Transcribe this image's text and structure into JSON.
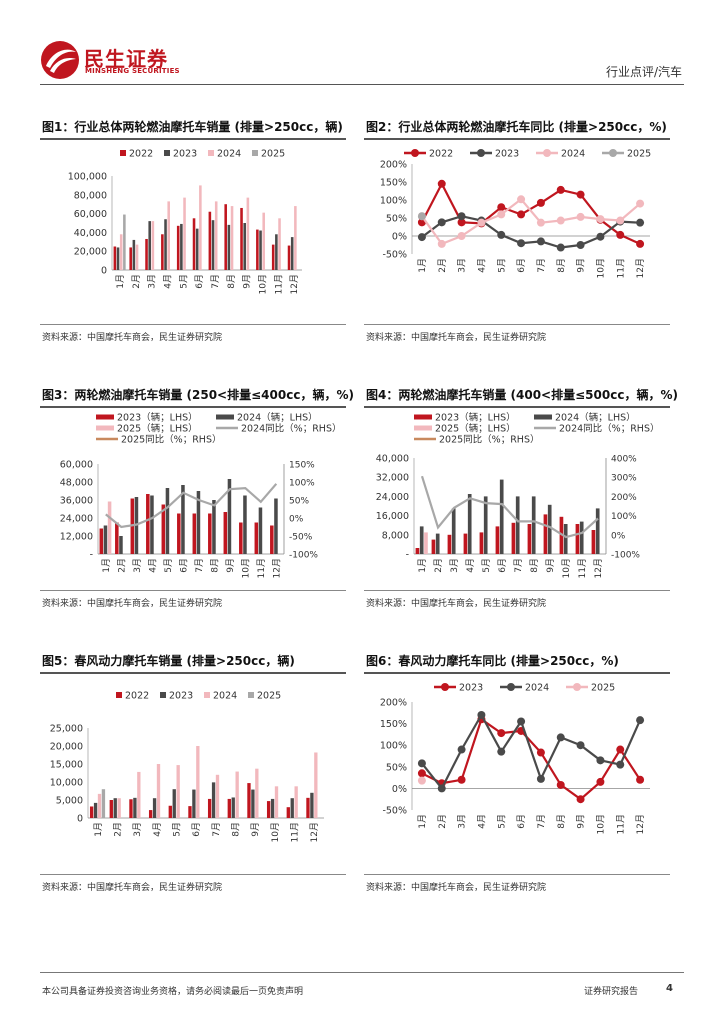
{
  "header": {
    "brand_cn": "民生证券",
    "brand_en": "MINSHENG SECURITIES",
    "category": "行业点评/汽车"
  },
  "colors": {
    "brand_red": "#c0161f",
    "s2022": "#c0161f",
    "s2023": "#4a4a4a",
    "s2024": "#f2b8bd",
    "s2025": "#a8a8a8",
    "rhs_2024": "#a8a8a8",
    "rhs_2025": "#c8895e"
  },
  "panels": [
    {
      "title": "图1：行业总体两轮燃油摩托车销量 (排量>250cc，辆)",
      "source": "资料来源：中国摩托车商会，民生证券研究院",
      "chart_data": {
        "type": "bar",
        "categories": [
          "1月",
          "2月",
          "3月",
          "4月",
          "5月",
          "6月",
          "7月",
          "8月",
          "9月",
          "10月",
          "11月",
          "12月"
        ],
        "ylim": [
          0,
          100000
        ],
        "yticks": [
          "0",
          "20,000",
          "40,000",
          "60,000",
          "80,000",
          "100,000"
        ],
        "legend": "top",
        "series": [
          {
            "name": "2022",
            "color": "#c0161f",
            "values": [
              25000,
              24000,
              33000,
              38000,
              47000,
              55000,
              62000,
              70000,
              66000,
              43000,
              27000,
              26000
            ]
          },
          {
            "name": "2023",
            "color": "#4a4a4a",
            "values": [
              24000,
              32000,
              52000,
              54000,
              49000,
              44000,
              53000,
              48000,
              50000,
              42000,
              38000,
              35000
            ]
          },
          {
            "name": "2024",
            "color": "#f2b8bd",
            "values": [
              38000,
              27000,
              52000,
              73000,
              77000,
              90000,
              73000,
              68000,
              77000,
              61000,
              55000,
              68000
            ]
          },
          {
            "name": "2025",
            "color": "#a8a8a8",
            "values": [
              59000,
              null,
              null,
              null,
              null,
              null,
              null,
              null,
              null,
              null,
              null,
              null
            ]
          }
        ]
      }
    },
    {
      "title": "图2：行业总体两轮燃油摩托车同比 (排量>250cc，%)",
      "source": "资料来源：中国摩托车商会，民生证券研究院",
      "chart_data": {
        "type": "line",
        "categories": [
          "1月",
          "2月",
          "3月",
          "4月",
          "5月",
          "6月",
          "7月",
          "8月",
          "9月",
          "10月",
          "11月",
          "12月"
        ],
        "ylim": [
          -50,
          200
        ],
        "yticks": [
          "-50%",
          "0%",
          "50%",
          "100%",
          "150%",
          "200%"
        ],
        "legend": "top",
        "series": [
          {
            "name": "2022",
            "color": "#c0161f",
            "values": [
              38,
              145,
              38,
              35,
              80,
              60,
              92,
              128,
              115,
              45,
              3,
              -22
            ]
          },
          {
            "name": "2023",
            "color": "#4a4a4a",
            "values": [
              -3,
              38,
              55,
              43,
              3,
              -20,
              -15,
              -32,
              -25,
              -2,
              40,
              37
            ]
          },
          {
            "name": "2024",
            "color": "#f2b8bd",
            "values": [
              55,
              -22,
              0,
              37,
              60,
              102,
              37,
              43,
              53,
              47,
              43,
              90
            ]
          },
          {
            "name": "2025",
            "color": "#a8a8a8",
            "values": [
              55,
              null,
              null,
              null,
              null,
              null,
              null,
              null,
              null,
              null,
              null,
              null
            ]
          }
        ]
      }
    },
    {
      "title": "图3：两轮燃油摩托车销量 (250<排量≤400cc，辆，%)",
      "source": "资料来源：中国摩托车商会，民生证券研究院",
      "chart_data": {
        "type": "bar",
        "categories": [
          "1月",
          "2月",
          "3月",
          "4月",
          "5月",
          "6月",
          "7月",
          "8月",
          "9月",
          "10月",
          "11月",
          "12月"
        ],
        "ylim": [
          0,
          60000
        ],
        "yticks": [
          "-",
          "12,000",
          "24,000",
          "36,000",
          "48,000",
          "60,000"
        ],
        "y2lim": [
          -100,
          150
        ],
        "y2ticks": [
          "-100%",
          "-50%",
          "0%",
          "50%",
          "100%",
          "150%"
        ],
        "legend": "top",
        "series": [
          {
            "name": "2023（辆；LHS）",
            "color": "#c0161f",
            "values": [
              17000,
              21000,
              37000,
              40000,
              33000,
              27000,
              27000,
              27000,
              28000,
              21000,
              21000,
              19000
            ]
          },
          {
            "name": "2024（辆；LHS）",
            "color": "#4a4a4a",
            "values": [
              19000,
              12000,
              38000,
              39000,
              44000,
              46000,
              42000,
              36000,
              50000,
              39000,
              31000,
              37000
            ]
          },
          {
            "name": "2025（辆；LHS）",
            "color": "#f2b8bd",
            "values": [
              35000,
              null,
              null,
              null,
              null,
              null,
              null,
              null,
              null,
              null,
              null,
              null
            ]
          },
          {
            "name": "2024同比（%；RHS）",
            "color": "#a8a8a8",
            "axis": "right",
            "values": [
              10,
              -25,
              -18,
              0,
              30,
              70,
              50,
              35,
              80,
              83,
              45,
              95
            ]
          },
          {
            "name": "2025同比（%；RHS）",
            "color": "#c8895e",
            "axis": "right",
            "values": [
              null,
              null,
              null,
              null,
              null,
              null,
              null,
              null,
              null,
              null,
              null,
              null
            ]
          }
        ]
      }
    },
    {
      "title": "图4：两轮燃油摩托车销量 (400<排量≤500cc，辆，%)",
      "source": "资料来源：中国摩托车商会，民生证券研究院",
      "chart_data": {
        "type": "bar",
        "categories": [
          "1月",
          "2月",
          "3月",
          "4月",
          "5月",
          "6月",
          "7月",
          "8月",
          "9月",
          "10月",
          "11月",
          "12月"
        ],
        "ylim": [
          0,
          40000
        ],
        "yticks": [
          "-",
          "8,000",
          "16,000",
          "24,000",
          "32,000",
          "40,000"
        ],
        "y2lim": [
          -100,
          400
        ],
        "y2ticks": [
          "-100%",
          "0%",
          "100%",
          "200%",
          "300%",
          "400%"
        ],
        "legend": "top",
        "series": [
          {
            "name": "2023（辆；LHS）",
            "color": "#c0161f",
            "values": [
              2500,
              6000,
              8000,
              8500,
              9000,
              11500,
              13000,
              12500,
              16500,
              15500,
              12500,
              10000
            ]
          },
          {
            "name": "2024（辆；LHS）",
            "color": "#4a4a4a",
            "values": [
              11500,
              8500,
              19000,
              25000,
              24000,
              31000,
              24000,
              24000,
              20500,
              12500,
              13500,
              19000
            ]
          },
          {
            "name": "2025（辆；LHS）",
            "color": "#f2b8bd",
            "values": [
              9000,
              null,
              null,
              null,
              null,
              null,
              null,
              null,
              null,
              null,
              null,
              null
            ]
          },
          {
            "name": "2024同比（%；RHS）",
            "color": "#a8a8a8",
            "axis": "right",
            "values": [
              305,
              38,
              140,
              190,
              165,
              160,
              70,
              70,
              40,
              -12,
              10,
              85
            ]
          },
          {
            "name": "2025同比（%；RHS）",
            "color": "#c8895e",
            "axis": "right",
            "values": [
              null,
              null,
              null,
              null,
              null,
              null,
              null,
              null,
              null,
              null,
              null,
              null
            ]
          }
        ]
      }
    },
    {
      "title": "图5：春风动力摩托车销量 (排量>250cc，辆)",
      "source": "资料来源：中国摩托车商会，民生证券研究院",
      "chart_data": {
        "type": "bar",
        "categories": [
          "1月",
          "2月",
          "3月",
          "4月",
          "5月",
          "6月",
          "7月",
          "8月",
          "9月",
          "10月",
          "11月",
          "12月"
        ],
        "ylim": [
          0,
          25000
        ],
        "yticks": [
          "0",
          "5,000",
          "10,000",
          "15,000",
          "20,000",
          "25,000"
        ],
        "legend": "top",
        "series": [
          {
            "name": "2022",
            "color": "#c0161f",
            "values": [
              3200,
              5000,
              5200,
              2200,
              3400,
              3300,
              5300,
              5300,
              9700,
              4700,
              3000,
              5600
            ]
          },
          {
            "name": "2023",
            "color": "#4a4a4a",
            "values": [
              4200,
              5500,
              5600,
              5500,
              8000,
              7900,
              9900,
              5700,
              7900,
              5300,
              5500,
              7000
            ]
          },
          {
            "name": "2024",
            "color": "#f2b8bd",
            "values": [
              6700,
              5500,
              12800,
              15000,
              14700,
              20000,
              12000,
              12900,
              13700,
              8800,
              8800,
              18200
            ]
          },
          {
            "name": "2025",
            "color": "#a8a8a8",
            "values": [
              8000,
              null,
              null,
              null,
              null,
              null,
              null,
              null,
              null,
              null,
              null,
              null
            ]
          }
        ]
      }
    },
    {
      "title": "图6：春风动力摩托车同比 (排量>250cc，%)",
      "source": "资料来源：中国摩托车商会，民生证券研究院",
      "chart_data": {
        "type": "line",
        "categories": [
          "1月",
          "2月",
          "3月",
          "4月",
          "5月",
          "6月",
          "7月",
          "8月",
          "9月",
          "10月",
          "11月",
          "12月"
        ],
        "ylim": [
          -50,
          200
        ],
        "yticks": [
          "-50%",
          "0%",
          "50%",
          "100%",
          "150%",
          "200%"
        ],
        "legend": "top",
        "series": [
          {
            "name": "2023",
            "color": "#c0161f",
            "values": [
              35,
              12,
              20,
              160,
              128,
              133,
              83,
              8,
              -25,
              15,
              90,
              20
            ]
          },
          {
            "name": "2024",
            "color": "#4a4a4a",
            "values": [
              58,
              0,
              90,
              170,
              85,
              155,
              22,
              118,
              100,
              65,
              55,
              158
            ]
          },
          {
            "name": "2025",
            "color": "#f2b8bd",
            "values": [
              18,
              null,
              null,
              null,
              null,
              null,
              null,
              null,
              null,
              null,
              null,
              null
            ]
          }
        ]
      }
    }
  ],
  "footer": {
    "disclaimer": "本公司具备证券投资咨询业务资格，请务必阅读最后一页免责声明",
    "report_type": "证券研究报告",
    "page": "4"
  }
}
